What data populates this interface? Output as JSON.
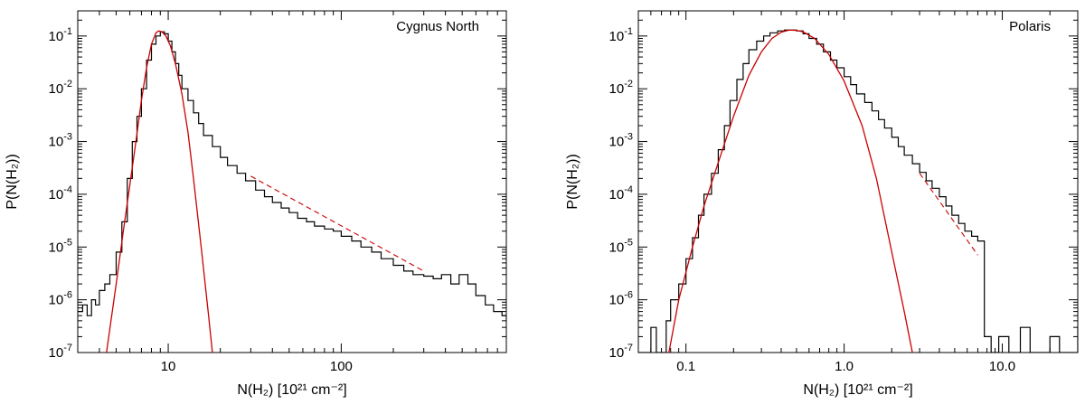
{
  "chart_data": [
    {
      "type": "line",
      "title": "Cygnus North",
      "xlabel": "N(H₂)  [10²¹ cm⁻²]",
      "ylabel": "P(N(H₂))",
      "xscale": "log",
      "yscale": "log",
      "xlim": [
        3,
        900
      ],
      "ylim": [
        1e-07,
        0.3
      ],
      "x_tick_labels": [
        {
          "value": 10,
          "text": "10"
        },
        {
          "value": 100,
          "text": "100"
        }
      ],
      "y_tick_labels": [
        {
          "value": 1e-07,
          "base": "10",
          "exp": "-7"
        },
        {
          "value": 1e-06,
          "base": "10",
          "exp": "-6"
        },
        {
          "value": 1e-05,
          "base": "10",
          "exp": "-5"
        },
        {
          "value": 0.0001,
          "base": "10",
          "exp": "-4"
        },
        {
          "value": 0.001,
          "base": "10",
          "exp": "-3"
        },
        {
          "value": 0.01,
          "base": "10",
          "exp": "-2"
        },
        {
          "value": 0.1,
          "base": "10",
          "exp": "-1"
        }
      ],
      "series": [
        {
          "style": "histogram",
          "x": [
            3.0,
            3.2,
            3.4,
            3.6,
            3.8,
            4.0,
            4.3,
            4.6,
            5.0,
            5.4,
            5.8,
            6.2,
            6.6,
            7.0,
            7.5,
            8.0,
            8.5,
            9.0,
            9.5,
            10.0,
            10.5,
            11.0,
            11.5,
            12.0,
            13.0,
            14.0,
            15.0,
            16.0,
            18.0,
            20.0,
            22.0,
            25.0,
            28.0,
            32.0,
            36.0,
            40.0,
            45.0,
            50.0,
            56.0,
            63.0,
            70.0,
            80.0,
            90.0,
            100.0,
            115.0,
            130.0,
            150.0,
            170.0,
            200.0,
            230.0,
            260.0,
            300.0,
            340.0,
            380.0,
            430.0,
            480.0,
            540.0,
            600.0,
            680.0,
            760.0,
            850.0,
            900.0
          ],
          "values": [
            6e-07,
            8e-07,
            5e-07,
            1e-06,
            8e-07,
            1.5e-06,
            2e-06,
            3e-06,
            8e-06,
            3e-05,
            0.0002,
            0.001,
            0.003,
            0.01,
            0.035,
            0.07,
            0.1,
            0.12,
            0.11,
            0.08,
            0.05,
            0.03,
            0.018,
            0.01,
            0.006,
            0.0035,
            0.0022,
            0.0013,
            0.0008,
            0.0005,
            0.00035,
            0.00025,
            0.00018,
            0.00012,
            9e-05,
            7e-05,
            5.5e-05,
            4.5e-05,
            3.5e-05,
            3e-05,
            2.5e-05,
            2.2e-05,
            2e-05,
            1.6e-05,
            1.3e-05,
            1e-05,
            8e-06,
            6e-06,
            4.5e-06,
            3.5e-06,
            3e-06,
            2.8e-06,
            2.5e-06,
            3e-06,
            2e-06,
            3e-06,
            2e-06,
            1.2e-06,
            8e-07,
            6e-07,
            5e-07,
            4e-07
          ]
        },
        {
          "style": "solid-red",
          "x": [
            4.4,
            5.0,
            5.5,
            6.0,
            6.5,
            7.0,
            7.5,
            8.0,
            8.5,
            8.8,
            9.2,
            9.7,
            10.3,
            11.0,
            12.0,
            13.0,
            14.0,
            15.5,
            17.0,
            18.0
          ],
          "values": [
            1e-07,
            2e-06,
            2e-05,
            0.00015,
            0.001,
            0.006,
            0.025,
            0.07,
            0.115,
            0.125,
            0.12,
            0.1,
            0.065,
            0.03,
            0.008,
            0.0015,
            0.0002,
            1e-05,
            6e-07,
            1e-07
          ]
        },
        {
          "style": "dashed-red",
          "x": [
            30,
            300
          ],
          "values": [
            0.00022,
            3.5e-06
          ]
        }
      ]
    },
    {
      "type": "line",
      "title": "Polaris",
      "xlabel": "N(H₂)  [10²¹ cm⁻²]",
      "ylabel": "P(N(H₂))",
      "xscale": "log",
      "yscale": "log",
      "xlim": [
        0.05,
        30
      ],
      "ylim": [
        1e-07,
        0.3
      ],
      "x_tick_labels": [
        {
          "value": 0.1,
          "text": "0.1"
        },
        {
          "value": 1.0,
          "text": "1.0"
        },
        {
          "value": 10.0,
          "text": "10.0"
        }
      ],
      "y_tick_labels": [
        {
          "value": 1e-07,
          "base": "10",
          "exp": "-7"
        },
        {
          "value": 1e-06,
          "base": "10",
          "exp": "-6"
        },
        {
          "value": 1e-05,
          "base": "10",
          "exp": "-5"
        },
        {
          "value": 0.0001,
          "base": "10",
          "exp": "-4"
        },
        {
          "value": 0.001,
          "base": "10",
          "exp": "-3"
        },
        {
          "value": 0.01,
          "base": "10",
          "exp": "-2"
        },
        {
          "value": 0.1,
          "base": "10",
          "exp": "-1"
        }
      ],
      "series": [
        {
          "style": "histogram",
          "x": [
            0.05,
            0.055,
            0.06,
            0.065,
            0.07,
            0.075,
            0.08,
            0.09,
            0.1,
            0.11,
            0.12,
            0.13,
            0.145,
            0.16,
            0.175,
            0.19,
            0.21,
            0.23,
            0.25,
            0.28,
            0.31,
            0.34,
            0.38,
            0.42,
            0.46,
            0.5,
            0.55,
            0.6,
            0.67,
            0.74,
            0.82,
            0.9,
            1.0,
            1.1,
            1.2,
            1.35,
            1.5,
            1.65,
            1.8,
            2.0,
            2.2,
            2.4,
            2.7,
            3.0,
            3.3,
            3.6,
            4.0,
            4.4,
            4.8,
            5.3,
            5.8,
            6.4,
            7.0,
            7.7,
            8.5,
            9.5,
            11.0,
            13.0,
            15.0,
            17.0,
            20.0,
            23.0,
            26.0,
            30.0
          ],
          "values": [
            1e-07,
            1e-07,
            3e-07,
            1e-07,
            1e-07,
            4e-07,
            1e-06,
            2e-06,
            6e-06,
            1.5e-05,
            4e-05,
            0.0001,
            0.00025,
            0.0007,
            0.002,
            0.006,
            0.015,
            0.03,
            0.055,
            0.08,
            0.1,
            0.115,
            0.125,
            0.13,
            0.13,
            0.125,
            0.11,
            0.09,
            0.07,
            0.05,
            0.035,
            0.025,
            0.017,
            0.012,
            0.008,
            0.0055,
            0.0038,
            0.0026,
            0.0018,
            0.0012,
            0.0008,
            0.00055,
            0.00038,
            0.00026,
            0.00018,
            0.00013,
            9e-05,
            6e-05,
            4e-05,
            2.8e-05,
            2e-05,
            1.6e-05,
            1.3e-05,
            2e-07,
            1e-07,
            2e-07,
            1e-07,
            3e-07,
            1e-07,
            1e-07,
            2e-07,
            1e-07,
            1e-07,
            3e-07
          ]
        },
        {
          "style": "solid-red",
          "x": [
            0.078,
            0.09,
            0.11,
            0.13,
            0.16,
            0.2,
            0.25,
            0.3,
            0.35,
            0.4,
            0.45,
            0.5,
            0.55,
            0.65,
            0.8,
            1.0,
            1.3,
            1.6,
            2.0,
            2.4,
            2.7
          ],
          "values": [
            1e-07,
            1e-06,
            1e-05,
            6e-05,
            0.0004,
            0.003,
            0.018,
            0.05,
            0.09,
            0.118,
            0.13,
            0.128,
            0.12,
            0.09,
            0.045,
            0.014,
            0.002,
            0.0002,
            8e-06,
            6e-07,
            1e-07
          ]
        },
        {
          "style": "dashed-red",
          "x": [
            3.0,
            7.0
          ],
          "values": [
            0.00025,
            7e-06
          ]
        }
      ]
    }
  ]
}
